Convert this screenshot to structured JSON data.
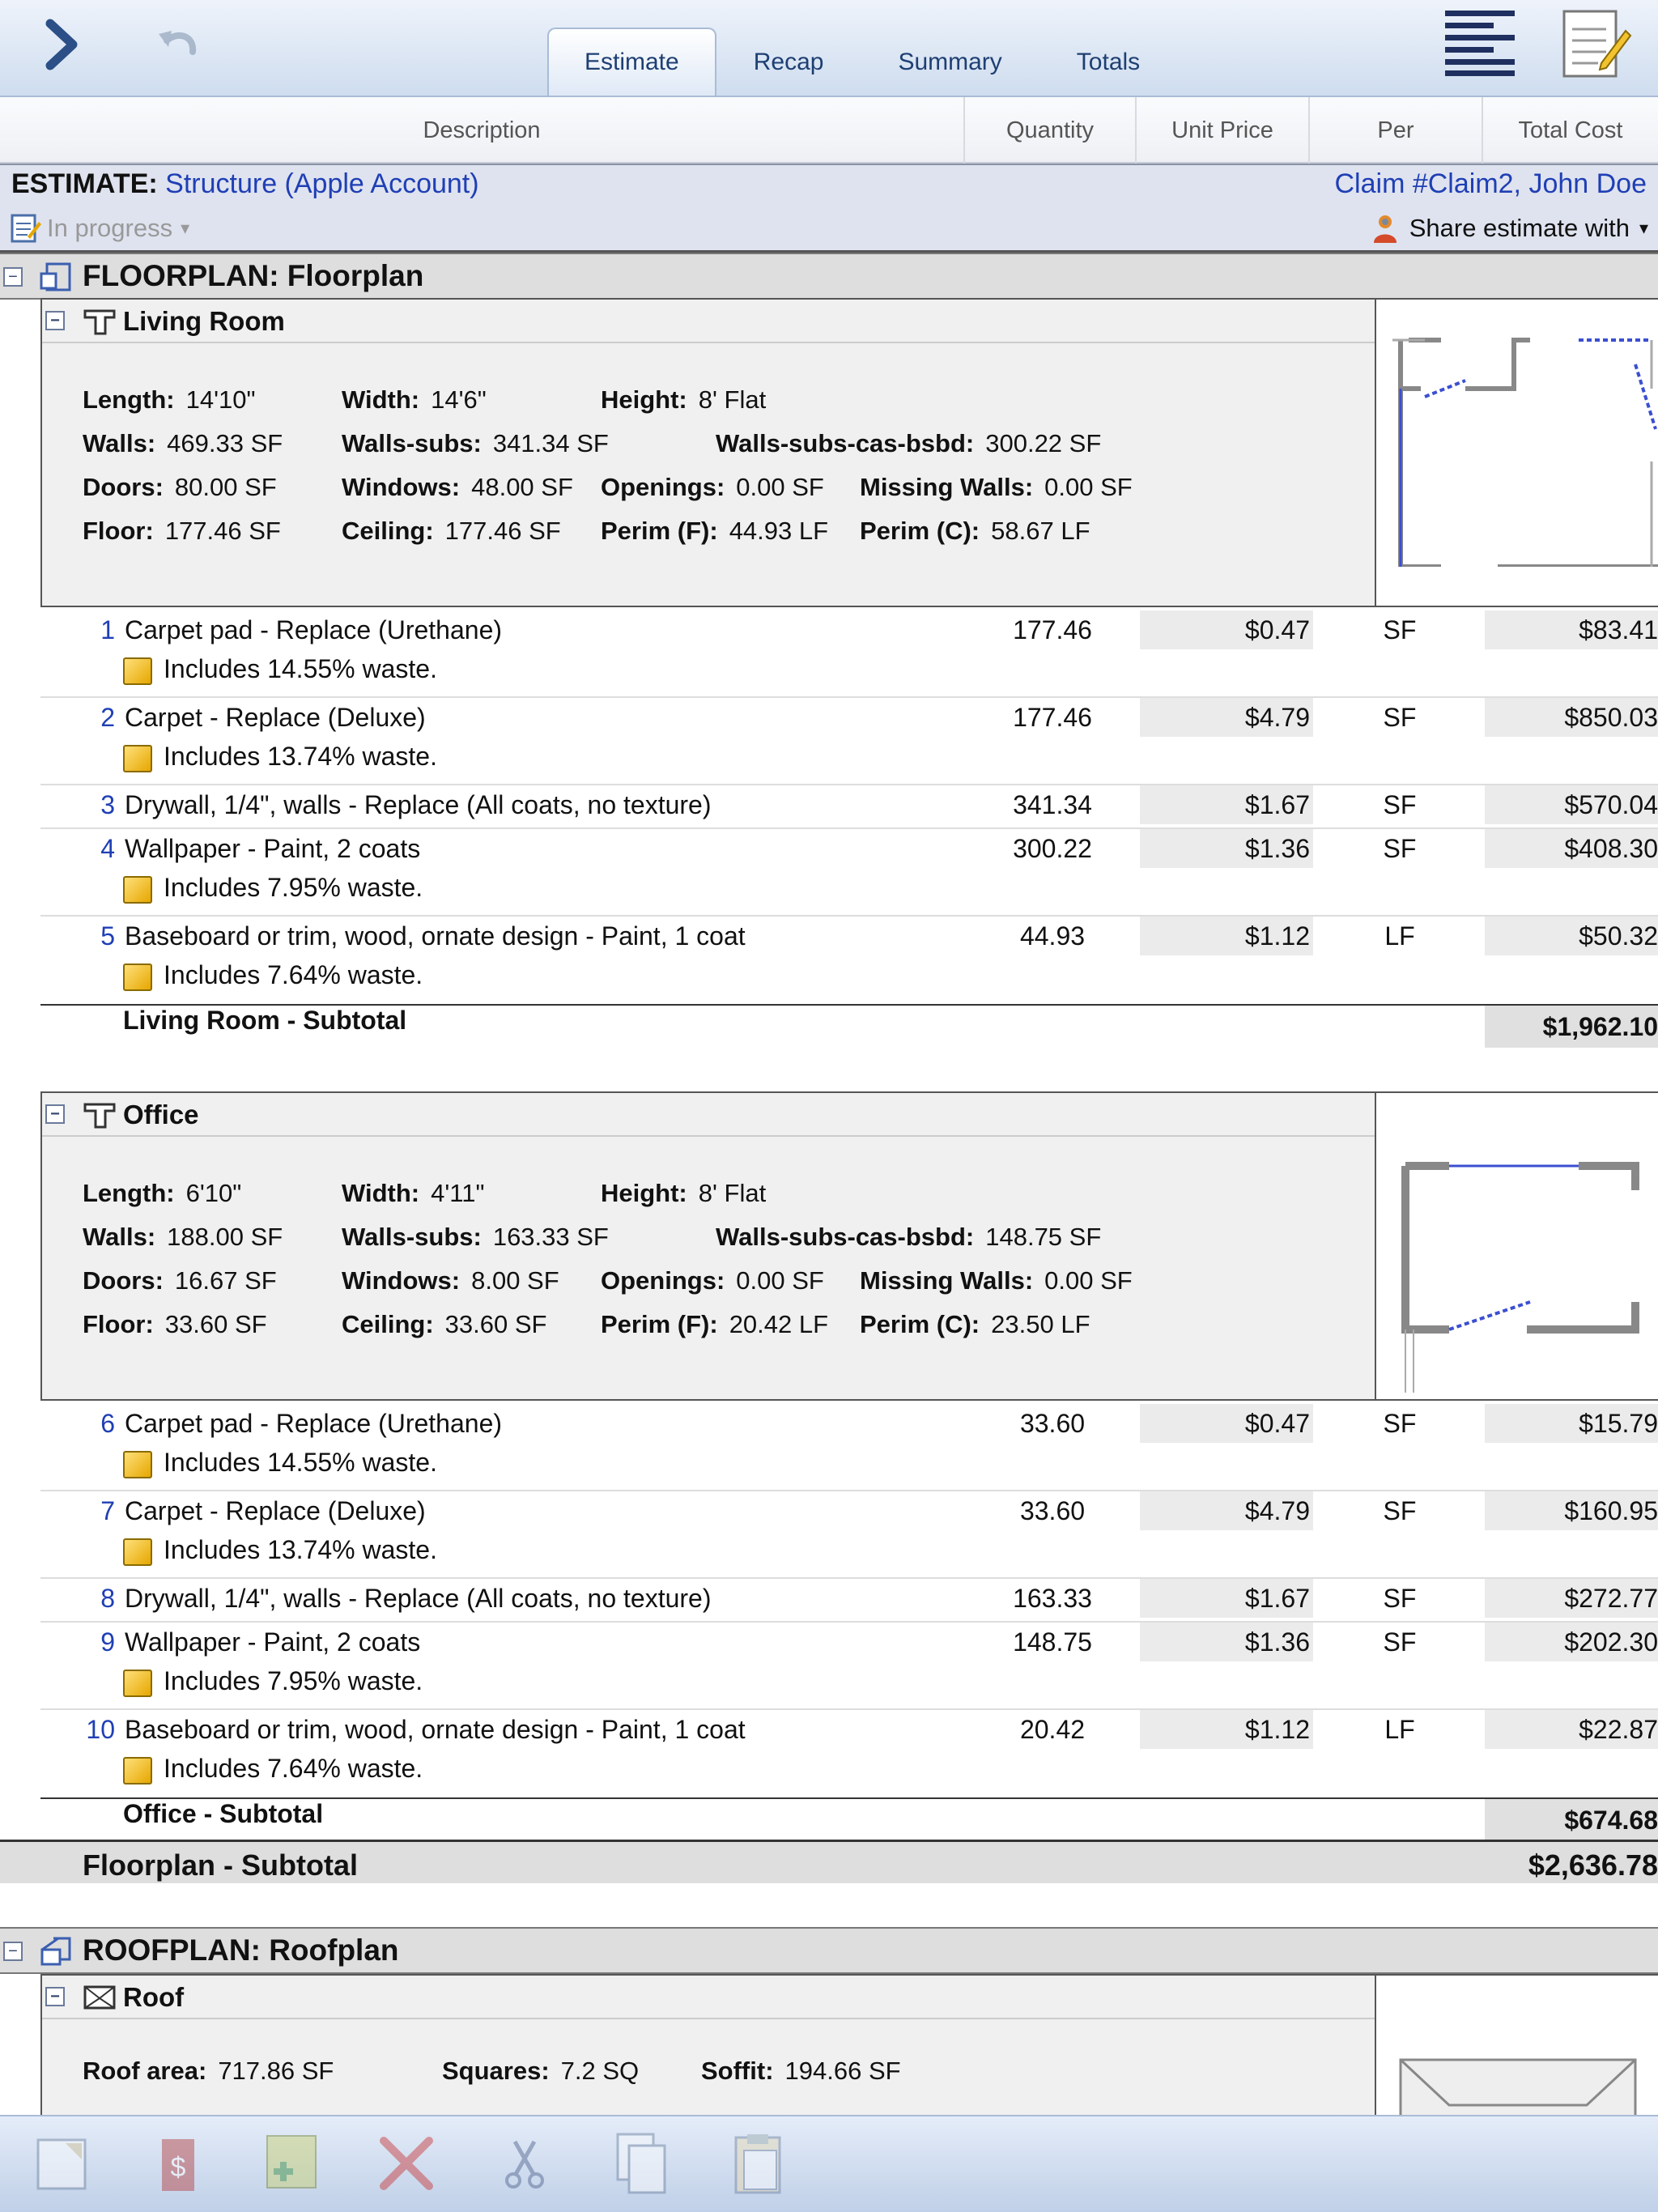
{
  "tabs": [
    {
      "label": "Estimate",
      "active": true
    },
    {
      "label": "Recap"
    },
    {
      "label": "Summary"
    },
    {
      "label": "Totals"
    }
  ],
  "columns": {
    "description": "Description",
    "quantity": "Quantity",
    "unit_price": "Unit Price",
    "per": "Per",
    "total_cost": "Total Cost"
  },
  "estimate": {
    "label": "ESTIMATE:",
    "name": "Structure (Apple Account)",
    "claim": "Claim #Claim2, John Doe",
    "status": "In progress",
    "share": "Share estimate with"
  },
  "floorplan": {
    "title": "FLOORPLAN: Floorplan",
    "subtotal_label": "Floorplan - Subtotal",
    "subtotal_value": "$2,636.78",
    "rooms": [
      {
        "name": "Living Room",
        "measurements": [
          [
            "Length:",
            "14'10\""
          ],
          [
            "Width:",
            "14'6\""
          ],
          [
            "Height:",
            "8' Flat"
          ],
          [
            "Walls:",
            "469.33 SF"
          ],
          [
            "Walls-subs:",
            "341.34 SF"
          ],
          [
            "Walls-subs-cas-bsbd:",
            "300.22 SF"
          ],
          [
            "Doors:",
            "80.00 SF"
          ],
          [
            "Windows:",
            "48.00 SF"
          ],
          [
            "Openings:",
            "0.00 SF"
          ],
          [
            "Missing Walls:",
            "0.00 SF"
          ],
          [
            "Floor:",
            "177.46 SF"
          ],
          [
            "Ceiling:",
            "177.46 SF"
          ],
          [
            "Perim (F):",
            "44.93 LF"
          ],
          [
            "Perim (C):",
            "58.67 LF"
          ]
        ],
        "items": [
          {
            "num": "1",
            "desc": "Carpet pad - Replace (Urethane)",
            "qty": "177.46",
            "up": "$0.47",
            "per": "SF",
            "tc": "$83.41",
            "note": "Includes 14.55% waste."
          },
          {
            "num": "2",
            "desc": "Carpet - Replace (Deluxe)",
            "qty": "177.46",
            "up": "$4.79",
            "per": "SF",
            "tc": "$850.03",
            "note": "Includes 13.74% waste."
          },
          {
            "num": "3",
            "desc": "Drywall, 1/4\", walls - Replace (All coats, no texture)",
            "qty": "341.34",
            "up": "$1.67",
            "per": "SF",
            "tc": "$570.04",
            "note": ""
          },
          {
            "num": "4",
            "desc": "Wallpaper - Paint, 2 coats",
            "qty": "300.22",
            "up": "$1.36",
            "per": "SF",
            "tc": "$408.30",
            "note": "Includes 7.95% waste."
          },
          {
            "num": "5",
            "desc": "Baseboard or trim, wood, ornate design - Paint, 1 coat",
            "qty": "44.93",
            "up": "$1.12",
            "per": "LF",
            "tc": "$50.32",
            "note": "Includes 7.64% waste."
          }
        ],
        "subtotal_label": "Living Room - Subtotal",
        "subtotal_value": "$1,962.10"
      },
      {
        "name": "Office",
        "measurements": [
          [
            "Length:",
            "6'10\""
          ],
          [
            "Width:",
            "4'11\""
          ],
          [
            "Height:",
            "8' Flat"
          ],
          [
            "Walls:",
            "188.00 SF"
          ],
          [
            "Walls-subs:",
            "163.33 SF"
          ],
          [
            "Walls-subs-cas-bsbd:",
            "148.75 SF"
          ],
          [
            "Doors:",
            "16.67 SF"
          ],
          [
            "Windows:",
            "8.00 SF"
          ],
          [
            "Openings:",
            "0.00 SF"
          ],
          [
            "Missing Walls:",
            "0.00 SF"
          ],
          [
            "Floor:",
            "33.60 SF"
          ],
          [
            "Ceiling:",
            "33.60 SF"
          ],
          [
            "Perim (F):",
            "20.42 LF"
          ],
          [
            "Perim (C):",
            "23.50 LF"
          ]
        ],
        "items": [
          {
            "num": "6",
            "desc": "Carpet pad - Replace (Urethane)",
            "qty": "33.60",
            "up": "$0.47",
            "per": "SF",
            "tc": "$15.79",
            "note": "Includes 14.55% waste."
          },
          {
            "num": "7",
            "desc": "Carpet - Replace (Deluxe)",
            "qty": "33.60",
            "up": "$4.79",
            "per": "SF",
            "tc": "$160.95",
            "note": "Includes 13.74% waste."
          },
          {
            "num": "8",
            "desc": "Drywall, 1/4\", walls - Replace (All coats, no texture)",
            "qty": "163.33",
            "up": "$1.67",
            "per": "SF",
            "tc": "$272.77",
            "note": ""
          },
          {
            "num": "9",
            "desc": "Wallpaper - Paint, 2 coats",
            "qty": "148.75",
            "up": "$1.36",
            "per": "SF",
            "tc": "$202.30",
            "note": "Includes 7.95% waste."
          },
          {
            "num": "10",
            "desc": "Baseboard or trim, wood, ornate design - Paint, 1 coat",
            "qty": "20.42",
            "up": "$1.12",
            "per": "LF",
            "tc": "$22.87",
            "note": "Includes 7.64% waste."
          }
        ],
        "subtotal_label": "Office - Subtotal",
        "subtotal_value": "$674.68"
      }
    ]
  },
  "roofplan": {
    "title": "ROOFPLAN: Roofplan",
    "room": "Roof",
    "measurements": [
      [
        "Roof area:",
        "717.86 SF"
      ],
      [
        "Squares:",
        "7.2 SQ"
      ],
      [
        "Soffit:",
        "194.66 SF"
      ]
    ]
  },
  "colors": {
    "accent": "#1f3fb5",
    "tab_text": "#1e3f73",
    "toolbar": "#c0d0e8"
  },
  "icons": [
    "forward-arrow-icon",
    "undo-icon",
    "list-view-icon",
    "notes-icon",
    "edit-doc-icon",
    "share-icon",
    "floorplan-icon",
    "room-icon",
    "roofplan-icon",
    "roof-icon",
    "note-icon"
  ],
  "toolbar_icons": [
    "clipboard-icon",
    "price-tag-icon",
    "add-item-icon",
    "delete-icon",
    "cut-icon",
    "copy-icon",
    "paste-icon"
  ]
}
